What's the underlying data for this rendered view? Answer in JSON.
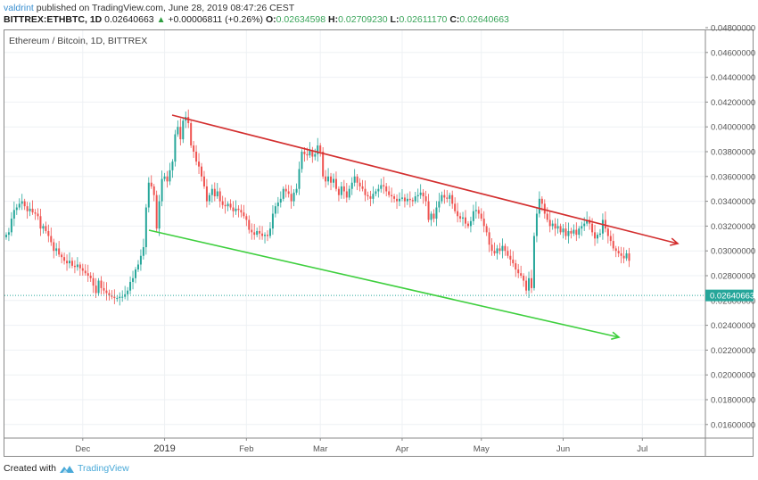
{
  "header": {
    "publisher": "valdrint",
    "published_text": " published on TradingView.com, June 28, 2019 08:47:26 CEST",
    "symbol": "BITTREX:ETHBTC, 1D",
    "last": "0.02640663",
    "change": "+0.00006811 (+0.26%)",
    "open_label": "O:",
    "open": "0.02634598",
    "high_label": "H:",
    "high": "0.02709230",
    "low_label": "L:",
    "low": "0.02611170",
    "close_label": "C:",
    "close": "0.02640663"
  },
  "legend": {
    "title": "Ethereum / Bitcoin, 1D, BITTREX"
  },
  "footer": {
    "created_with": "Created with",
    "brand": "TradingView"
  },
  "colors": {
    "up": "#26a69a",
    "down": "#ef5350",
    "resistance": "#d32f2f",
    "support": "#3ecf3e",
    "last_price_bg": "#26a69a"
  },
  "chart_data": {
    "type": "candlestick",
    "title": "Ethereum / Bitcoin, 1D, BITTREX",
    "xlabel": "",
    "ylabel": "",
    "ylim": [
      0.0148,
      0.0482
    ],
    "y_ticks": [
      "0.04800000",
      "0.04600000",
      "0.04400000",
      "0.04200000",
      "0.04000000",
      "0.03800000",
      "0.03600000",
      "0.03400000",
      "0.03200000",
      "0.03000000",
      "0.02800000",
      "0.02600000",
      "0.02400000",
      "0.02200000",
      "0.02000000",
      "0.01800000",
      "0.01600000"
    ],
    "x_ticks": [
      "Dec",
      "2019",
      "Feb",
      "Mar",
      "Apr",
      "May",
      "Jun",
      "Jul"
    ],
    "last_price_label": "0.02640663",
    "grid": true,
    "trendlines": [
      {
        "name": "resistance",
        "color": "#d32f2f",
        "from": {
          "date": "2019-01-04",
          "price": 0.0411
        },
        "to": {
          "date": "2019-07-16",
          "price": 0.0307
        },
        "arrow": true
      },
      {
        "name": "support",
        "color": "#3ecf3e",
        "from": {
          "date": "2018-12-27",
          "price": 0.0318
        },
        "to": {
          "date": "2019-06-26",
          "price": 0.0232
        },
        "arrow": true
      }
    ],
    "series_close_approx": {
      "dates_start": "2018-11-01",
      "interval": "1D",
      "close": [
        0.0313,
        0.0315,
        0.0326,
        0.0333,
        0.0335,
        0.0338,
        0.034,
        0.0336,
        0.0332,
        0.0334,
        0.0331,
        0.033,
        0.0328,
        0.0318,
        0.032,
        0.0316,
        0.0312,
        0.0307,
        0.03,
        0.0302,
        0.0297,
        0.0295,
        0.0292,
        0.029,
        0.0292,
        0.0288,
        0.0287,
        0.0289,
        0.0286,
        0.0284,
        0.0282,
        0.028,
        0.0278,
        0.0272,
        0.0266,
        0.0276,
        0.027,
        0.0268,
        0.0266,
        0.0264,
        0.0263,
        0.0262,
        0.0262,
        0.0263,
        0.0263,
        0.0265,
        0.0268,
        0.0275,
        0.0278,
        0.0285,
        0.0289,
        0.0296,
        0.0303,
        0.0335,
        0.0355,
        0.0352,
        0.0345,
        0.0318,
        0.034,
        0.0358,
        0.036,
        0.0356,
        0.0365,
        0.0372,
        0.0394,
        0.04,
        0.039,
        0.0405,
        0.0408,
        0.0403,
        0.0385,
        0.038,
        0.0372,
        0.0368,
        0.036,
        0.0352,
        0.034,
        0.0345,
        0.035,
        0.0344,
        0.0348,
        0.034,
        0.0337,
        0.0336,
        0.0338,
        0.0335,
        0.0332,
        0.0334,
        0.0333,
        0.0331,
        0.0328,
        0.0325,
        0.0317,
        0.0315,
        0.0313,
        0.0316,
        0.0314,
        0.0312,
        0.0313,
        0.0312,
        0.0318,
        0.033,
        0.0336,
        0.0339,
        0.0342,
        0.035,
        0.0348,
        0.0346,
        0.034,
        0.0347,
        0.035,
        0.0366,
        0.038,
        0.0378,
        0.0377,
        0.0381,
        0.0376,
        0.0378,
        0.0385,
        0.038,
        0.036,
        0.0356,
        0.036,
        0.0355,
        0.0358,
        0.035,
        0.0345,
        0.0352,
        0.0348,
        0.0343,
        0.035,
        0.0355,
        0.036,
        0.0355,
        0.0352,
        0.035,
        0.0345,
        0.0344,
        0.0342,
        0.0346,
        0.0348,
        0.035,
        0.0353,
        0.0352,
        0.0348,
        0.0345,
        0.0344,
        0.0342,
        0.034,
        0.0342,
        0.0343,
        0.034,
        0.0342,
        0.0341,
        0.034,
        0.0344,
        0.0345,
        0.0347,
        0.0344,
        0.034,
        0.0325,
        0.033,
        0.0326,
        0.0335,
        0.034,
        0.0345,
        0.0343,
        0.0342,
        0.0345,
        0.0338,
        0.0332,
        0.0328,
        0.0326,
        0.0327,
        0.0322,
        0.032,
        0.0324,
        0.0332,
        0.0333,
        0.033,
        0.0326,
        0.032,
        0.0315,
        0.0305,
        0.03,
        0.0298,
        0.0302,
        0.03,
        0.0304,
        0.03,
        0.0296,
        0.0293,
        0.029,
        0.0285,
        0.0282,
        0.028,
        0.0276,
        0.0268,
        0.0278,
        0.027,
        0.0312,
        0.033,
        0.0342,
        0.0338,
        0.033,
        0.0325,
        0.032,
        0.0322,
        0.0318,
        0.032,
        0.0315,
        0.0318,
        0.0312,
        0.0316,
        0.0314,
        0.0317,
        0.0313,
        0.0318,
        0.032,
        0.0322,
        0.0325,
        0.0322,
        0.0315,
        0.031,
        0.0313,
        0.0314,
        0.0325,
        0.0318,
        0.0312,
        0.0308,
        0.0302,
        0.03,
        0.0298,
        0.0296,
        0.0294,
        0.0298,
        0.0292,
        0.029,
        0.0286,
        0.028,
        0.0265,
        0.0262,
        0.0266,
        0.0264
      ]
    }
  }
}
